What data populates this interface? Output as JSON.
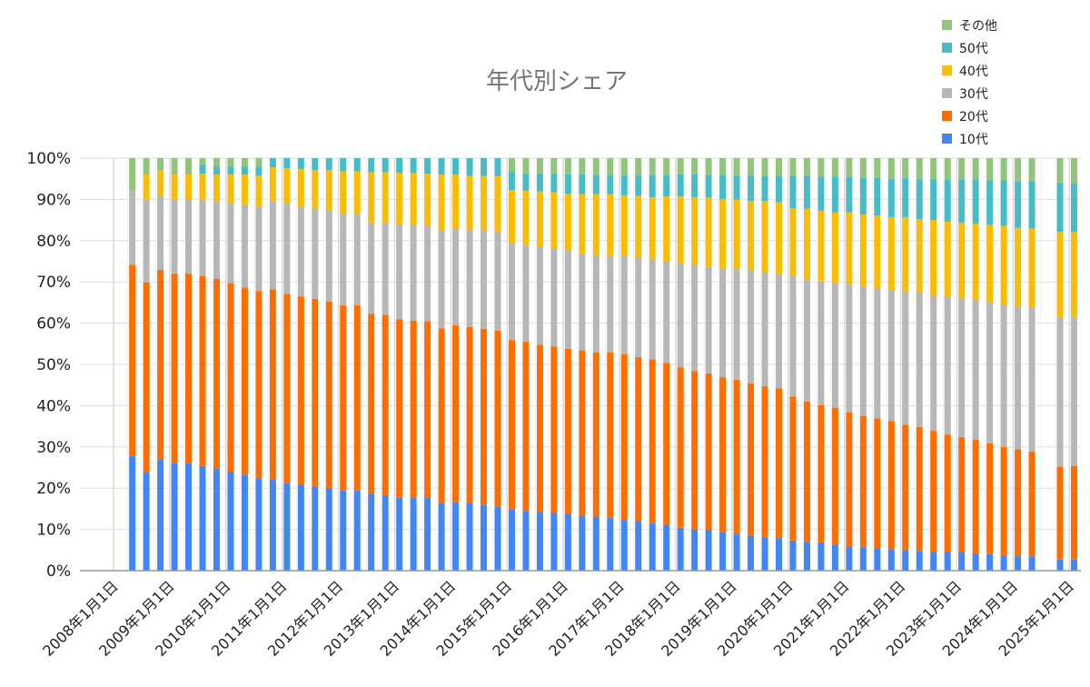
{
  "chart_data": {
    "type": "bar",
    "stacked": "percent",
    "title": "年代別シェア",
    "xlabel": "",
    "ylabel": "",
    "ylim": [
      0,
      100
    ],
    "yticks": [
      "0%",
      "10%",
      "20%",
      "30%",
      "40%",
      "50%",
      "60%",
      "70%",
      "80%",
      "90%",
      "100%"
    ],
    "xticks": [
      "2008年1月1日",
      "2009年1月1日",
      "2010年1月1日",
      "2011年1月1日",
      "2012年1月1日",
      "2013年1月1日",
      "2014年1月1日",
      "2015年1月1日",
      "2016年1月1日",
      "2017年1月1日",
      "2018年1月1日",
      "2019年1月1日",
      "2020年1月1日",
      "2021年1月1日",
      "2022年1月1日",
      "2023年1月1日",
      "2024年1月1日",
      "2025年1月1日"
    ],
    "xtick_dates": [
      "2008-01",
      "2009-01",
      "2010-01",
      "2011-01",
      "2012-01",
      "2013-01",
      "2014-01",
      "2015-01",
      "2016-01",
      "2017-01",
      "2018-01",
      "2019-01",
      "2020-01",
      "2021-01",
      "2022-01",
      "2023-01",
      "2024-01",
      "2025-01"
    ],
    "grid": true,
    "legend": "top-right",
    "x": [
      "2008-05",
      "2008-08",
      "2008-11",
      "2009-02",
      "2009-05",
      "2009-08",
      "2009-11",
      "2010-02",
      "2010-05",
      "2010-08",
      "2010-11",
      "2011-02",
      "2011-05",
      "2011-08",
      "2011-11",
      "2012-02",
      "2012-05",
      "2012-08",
      "2012-11",
      "2013-02",
      "2013-05",
      "2013-08",
      "2013-11",
      "2014-02",
      "2014-05",
      "2014-08",
      "2014-11",
      "2015-02",
      "2015-05",
      "2015-08",
      "2015-11",
      "2016-02",
      "2016-05",
      "2016-08",
      "2016-11",
      "2017-02",
      "2017-05",
      "2017-08",
      "2017-11",
      "2018-02",
      "2018-05",
      "2018-08",
      "2018-11",
      "2019-02",
      "2019-05",
      "2019-08",
      "2019-11",
      "2020-02",
      "2020-05",
      "2020-08",
      "2020-11",
      "2021-02",
      "2021-05",
      "2021-08",
      "2021-11",
      "2022-02",
      "2022-05",
      "2022-08",
      "2022-11",
      "2023-02",
      "2023-05",
      "2023-08",
      "2023-11",
      "2024-02",
      "2024-05",
      "2024-11",
      "2025-02"
    ],
    "series": [
      {
        "name": "10代",
        "color": "#4285f4",
        "values": [
          27.8,
          23.9,
          26.9,
          26.0,
          26.0,
          25.4,
          24.7,
          23.9,
          23.3,
          22.4,
          22.2,
          21.3,
          20.9,
          20.4,
          20.0,
          19.4,
          19.4,
          18.6,
          18.3,
          17.7,
          17.7,
          17.7,
          16.4,
          16.6,
          16.4,
          15.9,
          15.5,
          14.9,
          14.5,
          14.2,
          14.0,
          13.8,
          13.4,
          13.1,
          12.8,
          12.3,
          11.9,
          11.5,
          11.1,
          10.4,
          10.0,
          9.8,
          9.3,
          9.0,
          8.4,
          8.2,
          7.9,
          7.3,
          7.0,
          6.9,
          6.3,
          5.9,
          5.7,
          5.4,
          5.2,
          5.0,
          4.8,
          4.6,
          4.4,
          4.4,
          4.2,
          4.0,
          3.7,
          3.5,
          3.5,
          2.7,
          2.7
        ]
      },
      {
        "name": "20代",
        "color": "#ff6d01",
        "values": [
          46.3,
          46.0,
          46.0,
          46.0,
          46.0,
          46.0,
          46.0,
          45.8,
          45.3,
          45.4,
          46.0,
          45.8,
          45.6,
          45.5,
          45.2,
          44.9,
          44.9,
          43.7,
          43.7,
          43.2,
          42.9,
          42.8,
          42.3,
          42.9,
          42.7,
          42.7,
          42.7,
          41.0,
          41.0,
          40.6,
          40.3,
          40.0,
          40.0,
          39.8,
          40.1,
          40.2,
          39.9,
          39.7,
          39.3,
          38.9,
          38.4,
          38.0,
          37.6,
          37.3,
          37.0,
          36.5,
          36.3,
          34.9,
          34.0,
          33.2,
          33.2,
          32.5,
          31.8,
          31.5,
          31.1,
          30.4,
          30.0,
          29.3,
          28.6,
          28.0,
          27.6,
          26.9,
          26.3,
          25.9,
          25.4,
          22.5,
          22.7
        ]
      },
      {
        "name": "30代",
        "color": "#b7b7b7",
        "values": [
          18.1,
          20.1,
          18.1,
          18.0,
          18.0,
          18.4,
          18.7,
          19.3,
          20.2,
          20.3,
          21.4,
          21.9,
          21.8,
          22.0,
          22.2,
          22.3,
          22.3,
          22.1,
          22.2,
          23.1,
          23.2,
          23.1,
          23.8,
          23.4,
          23.6,
          23.9,
          24.0,
          23.4,
          23.4,
          23.6,
          23.9,
          24.0,
          23.3,
          23.6,
          23.5,
          23.7,
          24.2,
          24.4,
          24.7,
          25.2,
          25.6,
          25.8,
          26.4,
          26.8,
          27.3,
          27.7,
          27.8,
          29.2,
          29.7,
          30.2,
          30.3,
          31.1,
          31.4,
          31.6,
          31.8,
          32.3,
          32.7,
          32.9,
          33.4,
          33.6,
          33.8,
          34.2,
          34.5,
          34.6,
          34.9,
          36.1,
          36.1
        ]
      },
      {
        "name": "40代",
        "color": "#fbbc04",
        "values": [
          0,
          6.0,
          6.1,
          6.0,
          6.0,
          6.4,
          6.6,
          7.0,
          7.2,
          7.7,
          8.2,
          8.5,
          9.0,
          9.2,
          9.7,
          10.2,
          10.2,
          12.2,
          12.4,
          12.4,
          12.6,
          12.6,
          13.5,
          13.1,
          13.0,
          13.2,
          13.5,
          13.0,
          13.2,
          13.5,
          13.5,
          13.6,
          14.6,
          14.8,
          14.9,
          14.8,
          14.9,
          14.9,
          15.6,
          16.2,
          16.5,
          16.8,
          16.8,
          16.8,
          16.9,
          17.2,
          17.3,
          16.4,
          17.0,
          16.9,
          17.0,
          17.3,
          17.4,
          17.6,
          17.6,
          18.0,
          17.7,
          18.2,
          18.2,
          18.4,
          18.5,
          18.7,
          19.1,
          19.1,
          19.1,
          20.8,
          20.6
        ]
      },
      {
        "name": "50代",
        "color": "#46bdc6",
        "values": [
          0,
          0,
          0,
          0,
          0,
          2.3,
          1.9,
          1.9,
          1.9,
          2.1,
          2.2,
          2.5,
          2.7,
          2.9,
          2.9,
          3.2,
          3.2,
          3.4,
          3.4,
          3.6,
          3.6,
          3.8,
          4.0,
          4.0,
          4.3,
          4.3,
          4.3,
          4.3,
          4.2,
          4.4,
          4.6,
          4.7,
          4.8,
          4.6,
          4.6,
          4.9,
          5.0,
          5.4,
          5.2,
          5.4,
          5.6,
          5.5,
          5.8,
          5.8,
          6.1,
          6.1,
          6.4,
          7.9,
          8.0,
          8.3,
          8.7,
          8.7,
          8.9,
          9.1,
          9.3,
          9.5,
          9.8,
          10.0,
          10.2,
          10.4,
          10.7,
          10.8,
          11.0,
          11.2,
          11.4,
          11.9,
          11.9
        ]
      },
      {
        "name": "その他",
        "color": "#93c47d",
        "values": [
          7.8,
          4.0,
          2.9,
          4.0,
          4.0,
          1.5,
          2.1,
          2.1,
          2.1,
          2.1,
          0,
          0,
          0,
          0,
          0,
          0,
          0,
          0,
          0,
          0,
          0,
          0,
          0,
          0,
          0,
          0,
          0,
          3.4,
          3.7,
          3.7,
          3.7,
          3.9,
          3.9,
          4.1,
          4.1,
          4.1,
          4.1,
          4.1,
          4.1,
          3.9,
          3.9,
          4.1,
          4.1,
          4.3,
          4.3,
          4.3,
          4.3,
          4.3,
          4.3,
          4.5,
          4.5,
          4.5,
          4.8,
          4.8,
          5.0,
          4.8,
          5.0,
          5.0,
          5.2,
          5.2,
          5.2,
          5.4,
          5.4,
          5.7,
          5.7,
          6.0,
          6.0
        ]
      }
    ]
  }
}
